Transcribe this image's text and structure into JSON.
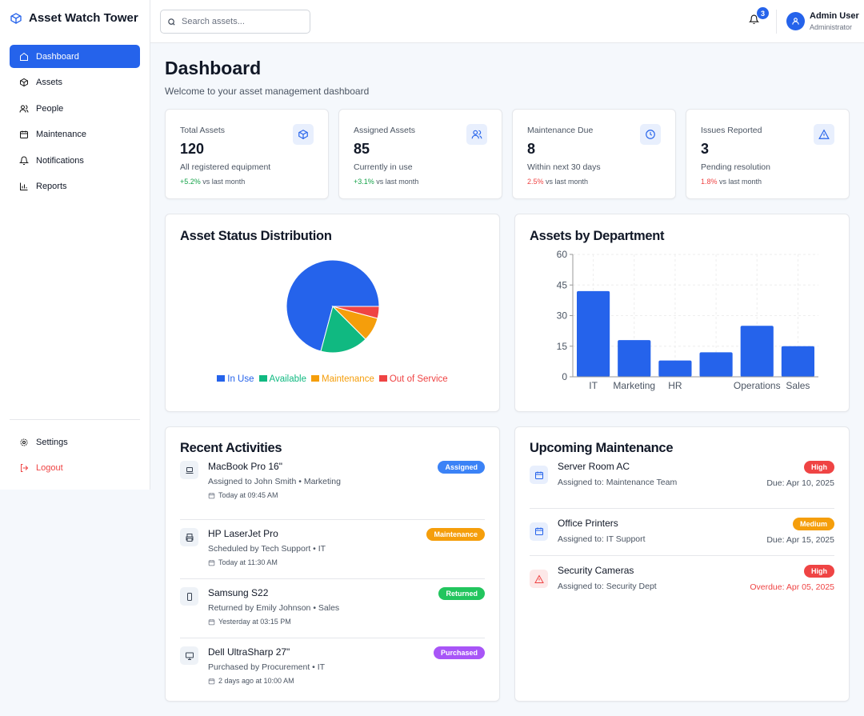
{
  "app": {
    "title": "Asset Watch Tower"
  },
  "sidebar": {
    "items": [
      {
        "label": "Dashboard",
        "icon": "home-icon"
      },
      {
        "label": "Assets",
        "icon": "box-icon"
      },
      {
        "label": "People",
        "icon": "users-icon"
      },
      {
        "label": "Maintenance",
        "icon": "calendar-icon"
      },
      {
        "label": "Notifications",
        "icon": "bell-icon"
      },
      {
        "label": "Reports",
        "icon": "bar-chart-icon"
      }
    ],
    "settings": "Settings",
    "logout": "Logout"
  },
  "header": {
    "search_placeholder": "Search assets...",
    "notification_count": "3",
    "user_name": "Admin User",
    "user_role": "Administrator"
  },
  "page": {
    "title": "Dashboard",
    "subtitle": "Welcome to your asset management dashboard"
  },
  "stats": [
    {
      "label": "Total Assets",
      "value": "120",
      "desc": "All registered equipment",
      "change": "+5.2%",
      "change_suffix": "vs last month",
      "trend": "up"
    },
    {
      "label": "Assigned Assets",
      "value": "85",
      "desc": "Currently in use",
      "change": "+3.1%",
      "change_suffix": "vs last month",
      "trend": "up"
    },
    {
      "label": "Maintenance Due",
      "value": "8",
      "desc": "Within next 30 days",
      "change": "2.5%",
      "change_suffix": "vs last month",
      "trend": "down"
    },
    {
      "label": "Issues Reported",
      "value": "3",
      "desc": "Pending resolution",
      "change": "1.8%",
      "change_suffix": "vs last month",
      "trend": "down"
    }
  ],
  "chart_data": [
    {
      "type": "pie",
      "title": "Asset Status Distribution",
      "categories": [
        "In Use",
        "Available",
        "Maintenance",
        "Out of Service"
      ],
      "values": [
        85,
        20,
        10,
        5
      ],
      "colors": [
        "#2563eb",
        "#10b981",
        "#f59e0b",
        "#ef4444"
      ],
      "legend": "bottom"
    },
    {
      "type": "bar",
      "title": "Assets by Department",
      "categories": [
        "IT",
        "Marketing",
        "HR",
        "",
        "Operations",
        "Sales"
      ],
      "values": [
        42,
        18,
        8,
        12,
        25,
        15
      ],
      "ylim": [
        0,
        60
      ],
      "yticks": [
        "0",
        "15",
        "30",
        "45",
        "60"
      ],
      "grid": true,
      "color": "#2563eb"
    }
  ],
  "activities": {
    "title": "Recent Activities",
    "items": [
      {
        "name": "MacBook Pro 16\"",
        "detail": "Assigned to John Smith • Marketing",
        "time": "Today at 09:45 AM",
        "status": "Assigned",
        "color": "#3b82f6",
        "icon": "laptop-icon"
      },
      {
        "name": "HP LaserJet Pro",
        "detail": "Scheduled by Tech Support • IT",
        "time": "Today at 11:30 AM",
        "status": "Maintenance",
        "color": "#f59e0b",
        "icon": "printer-icon"
      },
      {
        "name": "Samsung S22",
        "detail": "Returned by Emily Johnson • Sales",
        "time": "Yesterday at 03:15 PM",
        "status": "Returned",
        "color": "#22c55e",
        "icon": "phone-icon"
      },
      {
        "name": "Dell UltraSharp 27\"",
        "detail": "Purchased by Procurement • IT",
        "time": "2 days ago at 10:00 AM",
        "status": "Purchased",
        "color": "#a855f7",
        "icon": "monitor-icon"
      }
    ]
  },
  "maintenance": {
    "title": "Upcoming Maintenance",
    "items": [
      {
        "name": "Server Room AC",
        "assigned": "Assigned to: Maintenance Team",
        "priority": "High",
        "priority_color": "#ef4444",
        "due": "Due: Apr 10, 2025",
        "overdue": false
      },
      {
        "name": "Office Printers",
        "assigned": "Assigned to: IT Support",
        "priority": "Medium",
        "priority_color": "#f59e0b",
        "due": "Due: Apr 15, 2025",
        "overdue": false
      },
      {
        "name": "Security Cameras",
        "assigned": "Assigned to: Security Dept",
        "priority": "High",
        "priority_color": "#ef4444",
        "due": "Overdue: Apr 05, 2025",
        "overdue": true
      }
    ]
  }
}
